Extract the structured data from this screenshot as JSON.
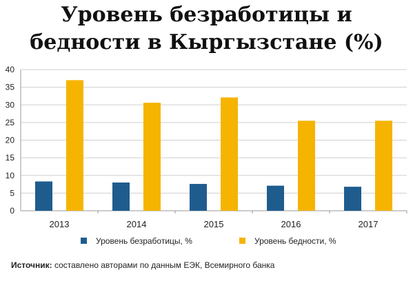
{
  "chart_data": {
    "type": "bar",
    "title_lines": [
      "Уровень безработицы и",
      "бедности в Кыргызстане (%)"
    ],
    "categories": [
      "2013",
      "2014",
      "2015",
      "2016",
      "2017"
    ],
    "series": [
      {
        "name": "Уровень безработицы, %",
        "values": [
          8.3,
          8.0,
          7.6,
          7.1,
          6.8
        ],
        "color": "#1f5c8e"
      },
      {
        "name": "Уровень бедности, %",
        "values": [
          37.0,
          30.6,
          32.1,
          25.5,
          25.5
        ],
        "color": "#f5b400"
      }
    ],
    "y_ticks": [
      "0",
      "5",
      "10",
      "15",
      "20",
      "25",
      "30",
      "35",
      "40"
    ],
    "ylim": [
      0,
      40
    ],
    "grid": true,
    "legend_position": "bottom"
  },
  "source": {
    "label": "Источник:",
    "text": " составлено авторами по данным ЕЭК, Всемирного банка"
  }
}
